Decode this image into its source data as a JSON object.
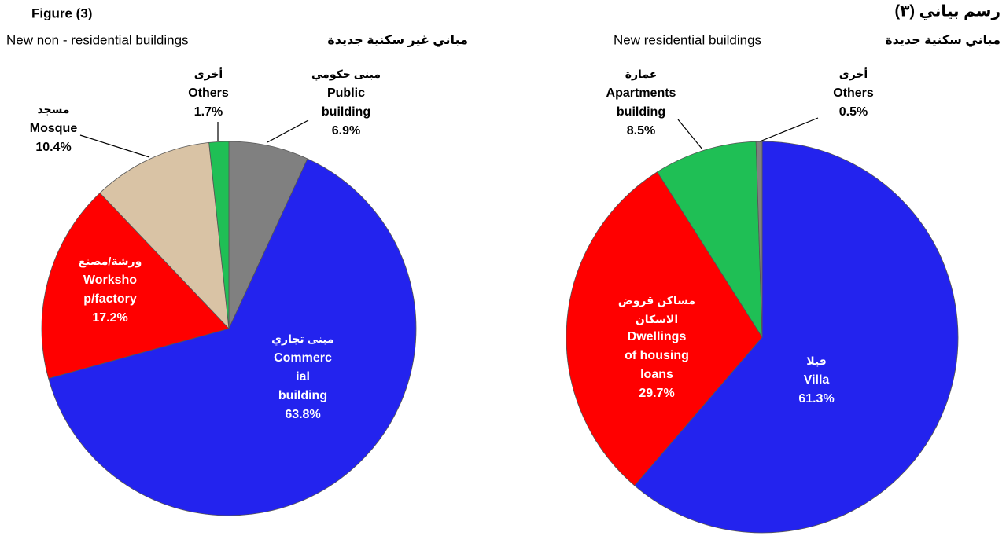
{
  "figure_label": "Figure (3)",
  "figure_label_ar": "رسم بياني (٣)",
  "chart_data": [
    {
      "type": "pie",
      "title": "New non - residential buildings",
      "title_ar": "مباني غير سكنية جديدة",
      "categories": [
        "Public building",
        "Commercial building",
        "Workshop/factory",
        "Mosque",
        "Others"
      ],
      "categories_ar": [
        "مبنى حكومي",
        "مبنى تجاري",
        "ورشة/مصنع",
        "مسجد",
        "أخرى"
      ],
      "values": [
        6.9,
        63.8,
        17.2,
        10.4,
        1.7
      ],
      "value_labels": [
        "6.9%",
        "63.8%",
        "17.2%",
        "10.4%",
        "1.7%"
      ],
      "colors": [
        "#808080",
        "#2323ee",
        "#ff0000",
        "#d9c3a5",
        "#1fbf55"
      ]
    },
    {
      "type": "pie",
      "title": "New residential buildings",
      "title_ar": "مباني سكنية جديدة",
      "categories": [
        "Villa",
        "Dwellings of housing loans",
        "Apartments building",
        "Others"
      ],
      "categories_ar": [
        "فيلا",
        "مساكن قروض الاسكان",
        "عمارة",
        "أخرى"
      ],
      "values": [
        61.3,
        29.7,
        8.5,
        0.5
      ],
      "value_labels": [
        "61.3%",
        "29.7%",
        "8.5%",
        "0.5%"
      ],
      "colors": [
        "#2323ee",
        "#ff0000",
        "#1fbf55",
        "#808080"
      ]
    }
  ]
}
